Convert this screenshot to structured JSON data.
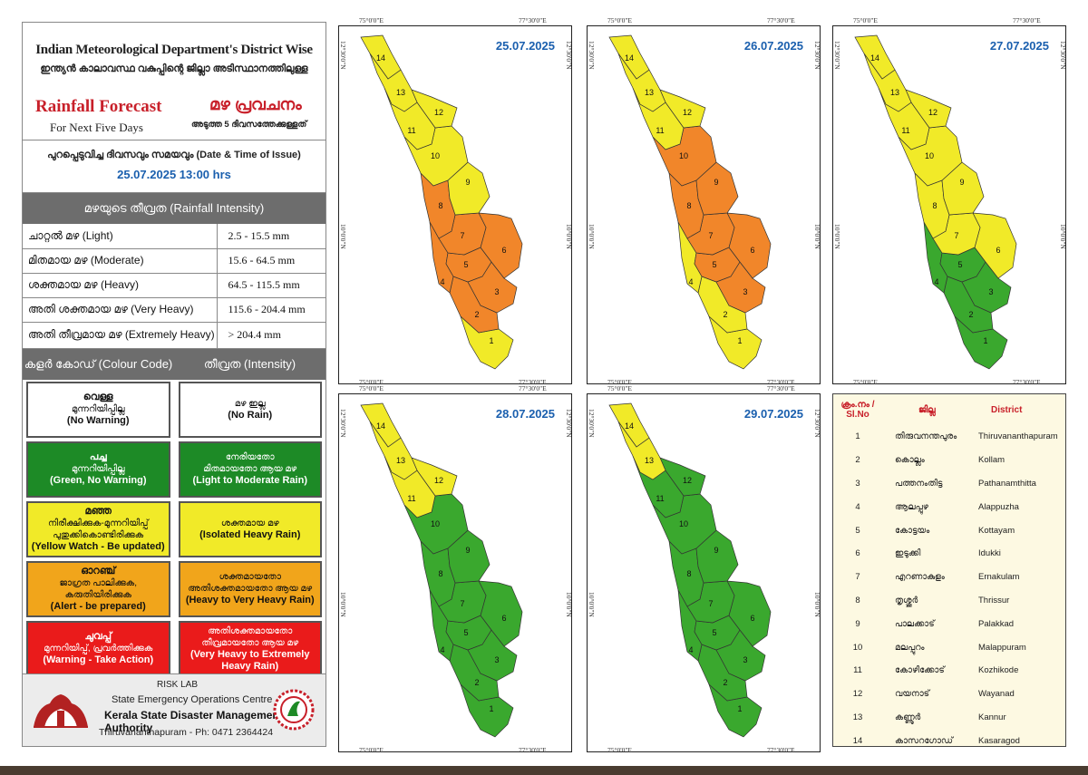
{
  "header": {
    "title_en": "Indian Meteorological Department's District Wise",
    "title_ml": "ഇന്ത്യൻ കാലാവസ്ഥ വകുപ്പിന്റെ ജില്ലാ അടിസ്ഥാനത്തിലുള്ള",
    "forecast_en": "Rainfall Forecast",
    "forecast_ml": "മഴ പ്രവചനം",
    "next_days_en": "For Next Five Days",
    "next_days_ml": "അടുത്ത 5 ദിവസത്തേക്കുള്ളത്"
  },
  "issue": {
    "label": "പുറപ്പെടുവിച്ച ദിവസവും സമയവും (Date & Time of Issue)",
    "datetime": "25.07.2025   13:00 hrs"
  },
  "intensity": {
    "heading": "മഴയുടെ തീവ്രത (Rainfall Intensity)",
    "rows": [
      {
        "label": "ചാറ്റൽ മഴ (Light)",
        "range": "2.5 - 15.5 mm"
      },
      {
        "label": "മിതമായ മഴ (Moderate)",
        "range": "15.6 - 64.5 mm"
      },
      {
        "label": "ശക്തമായ മഴ (Heavy)",
        "range": "64.5 - 115.5 mm"
      },
      {
        "label": "അതി ശക്തമായ  മഴ  (Very Heavy)",
        "range": "115.6 - 204.4 mm"
      },
      {
        "label": "അതി തീവ്രമായ മഴ (Extremely Heavy)",
        "range": "> 204.4 mm"
      }
    ]
  },
  "color_code": {
    "heading_left": "കളർ കോഡ് (Colour Code)",
    "heading_right": "തീവ്രത (Intensity)",
    "rows": [
      {
        "color": "#ffffff",
        "code_ml": "വെള്ള",
        "code_ml2": "മുന്നറിയിപ്പില്ല",
        "code_en": "(No Warning)",
        "int_ml": "മഴ ഇല്ല",
        "int_ml2": "",
        "int_en": "(No Rain)"
      },
      {
        "color": "#1d8a26",
        "code_ml": "പച്ച",
        "code_ml2": "മുന്നറിയിപ്പില്ല",
        "code_en": "(Green, No Warning)",
        "int_ml": "നേരിയതോ",
        "int_ml2": "മിതമായതോ ആയ മഴ",
        "int_en": "(Light to Moderate Rain)"
      },
      {
        "color": "#f1ea28",
        "code_ml": "മഞ്ഞ",
        "code_ml2": "നിരീക്ഷിക്കുക-മുന്നറിയിപ്പ് പുതുക്കികൊണ്ടിരിക്കുക",
        "code_en": "(Yellow Watch - Be updated)",
        "int_ml": "ശക്തമായ  മഴ",
        "int_ml2": "",
        "int_en": "(Isolated Heavy Rain)"
      },
      {
        "color": "#f1a51b",
        "code_ml": "ഓറഞ്ച്",
        "code_ml2": "ജാഗ്രത  പാലിക്കുക, കരുതിയിരിക്കുക",
        "code_en": "(Alert - be prepared)",
        "int_ml": "ശക്തമായതോ",
        "int_ml2": "അതിശക്തമായതോ ആയ മഴ",
        "int_en": "(Heavy to Very Heavy Rain)"
      },
      {
        "color": "#ea1b1b",
        "code_ml": "ചുവപ്പ്",
        "code_ml2": "മുന്നറിയിപ്പ്, പ്രവർത്തിക്കുക",
        "code_en": "(Warning - Take Action)",
        "int_ml": "അതിശക്തമായതോ",
        "int_ml2": "തീവ്രമായതോ ആയ മഴ",
        "int_en": "(Very Heavy to Extremely Heavy Rain)"
      }
    ]
  },
  "footer": {
    "risk_lab": "RISK LAB",
    "seoc": "State Emergency Operations Centre",
    "authority": "Kerala State Disaster Management Authority",
    "address": "Thiruvananthapuram - Ph: 0471 2364424"
  },
  "colors": {
    "yellow": "#f1ea28",
    "orange": "#f1862a",
    "green": "#3aa82e",
    "red": "#ea1b1b",
    "accent_blue": "#1a5fae",
    "accent_red": "#c8202a"
  },
  "coords": {
    "lon_left": "75°0'0\"E",
    "lon_right": "77°30'0\"E",
    "lat_top": "12°30'0\"N",
    "lat_mid": "10°0'0\"N"
  },
  "maps": [
    {
      "date": "25.07.2025",
      "districts": {
        "1": "yellow",
        "2": "orange",
        "3": "orange",
        "4": "orange",
        "5": "orange",
        "6": "orange",
        "7": "orange",
        "8": "orange",
        "9": "yellow",
        "10": "yellow",
        "11": "yellow",
        "12": "yellow",
        "13": "yellow",
        "14": "yellow"
      }
    },
    {
      "date": "26.07.2025",
      "districts": {
        "1": "yellow",
        "2": "yellow",
        "3": "orange",
        "4": "yellow",
        "5": "orange",
        "6": "orange",
        "7": "orange",
        "8": "orange",
        "9": "orange",
        "10": "orange",
        "11": "yellow",
        "12": "yellow",
        "13": "yellow",
        "14": "yellow"
      }
    },
    {
      "date": "27.07.2025",
      "districts": {
        "1": "green",
        "2": "green",
        "3": "green",
        "4": "green",
        "5": "green",
        "6": "yellow",
        "7": "yellow",
        "8": "yellow",
        "9": "yellow",
        "10": "yellow",
        "11": "yellow",
        "12": "yellow",
        "13": "yellow",
        "14": "yellow"
      }
    },
    {
      "date": "28.07.2025",
      "districts": {
        "1": "green",
        "2": "green",
        "3": "green",
        "4": "green",
        "5": "green",
        "6": "green",
        "7": "green",
        "8": "green",
        "9": "green",
        "10": "green",
        "11": "yellow",
        "12": "yellow",
        "13": "yellow",
        "14": "yellow"
      }
    },
    {
      "date": "29.07.2025",
      "districts": {
        "1": "green",
        "2": "green",
        "3": "green",
        "4": "green",
        "5": "green",
        "6": "green",
        "7": "green",
        "8": "green",
        "9": "green",
        "10": "green",
        "11": "green",
        "12": "green",
        "13": "yellow",
        "14": "yellow"
      }
    }
  ],
  "district_table": {
    "headers": {
      "sl": "ക്രം.നം / Sl.No",
      "ml": "ജില്ല",
      "en": "District"
    },
    "rows": [
      {
        "sl": "1",
        "ml": "തിരുവനന്തപുരം",
        "en": "Thiruvananthapuram"
      },
      {
        "sl": "2",
        "ml": "കൊല്ലം",
        "en": "Kollam"
      },
      {
        "sl": "3",
        "ml": "പത്തനംതിട്ട",
        "en": "Pathanamthitta"
      },
      {
        "sl": "4",
        "ml": "ആലപ്പുഴ",
        "en": "Alappuzha"
      },
      {
        "sl": "5",
        "ml": "കോട്ടയം",
        "en": "Kottayam"
      },
      {
        "sl": "6",
        "ml": "ഇടുക്കി",
        "en": "Idukki"
      },
      {
        "sl": "7",
        "ml": "എറണാകുളം",
        "en": "Ernakulam"
      },
      {
        "sl": "8",
        "ml": "തൃശ്ശൂർ",
        "en": "Thrissur"
      },
      {
        "sl": "9",
        "ml": "പാലക്കാട്",
        "en": "Palakkad"
      },
      {
        "sl": "10",
        "ml": "മലപ്പുറം",
        "en": "Malappuram"
      },
      {
        "sl": "11",
        "ml": "കോഴിക്കോട്",
        "en": "Kozhikode"
      },
      {
        "sl": "12",
        "ml": "വയനാട്",
        "en": "Wayanad"
      },
      {
        "sl": "13",
        "ml": "കണ്ണൂർ",
        "en": "Kannur"
      },
      {
        "sl": "14",
        "ml": "കാസറഗോഡ്",
        "en": "Kasaragod"
      }
    ]
  }
}
